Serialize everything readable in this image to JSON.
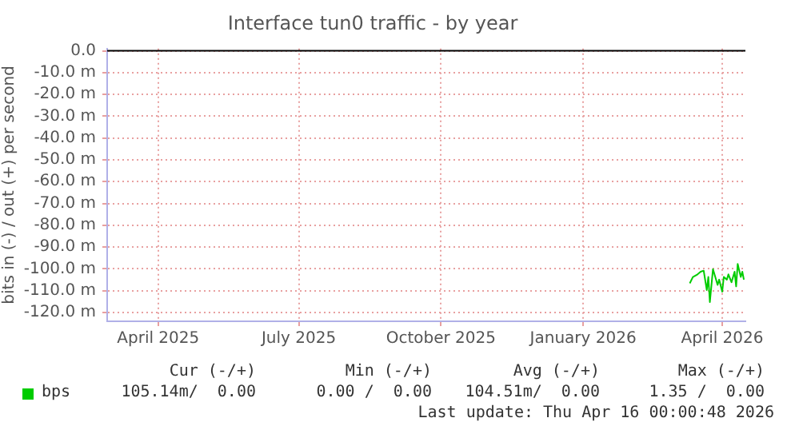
{
  "chart_data": {
    "type": "line",
    "title": "Interface tun0 traffic - by year",
    "ylabel": "bits in (-) / out (+) per second",
    "x": [
      "2026-03-11",
      "2026-03-13",
      "2026-03-16",
      "2026-03-18",
      "2026-03-20",
      "2026-03-22",
      "2026-03-23",
      "2026-03-24",
      "2026-03-26",
      "2026-03-27",
      "2026-03-29",
      "2026-03-30",
      "2026-04-01",
      "2026-04-02",
      "2026-04-04",
      "2026-04-05",
      "2026-04-07",
      "2026-04-09",
      "2026-04-10",
      "2026-04-11",
      "2026-04-13",
      "2026-04-14",
      "2026-04-15"
    ],
    "series": [
      {
        "name": "bps",
        "color": "#00cc00",
        "values": [
          -106.6,
          -103.7,
          -102.5,
          -101.3,
          -100.8,
          -109.7,
          -103.7,
          -115.2,
          -100.1,
          -102.5,
          -107.3,
          -104.9,
          -110.4,
          -103.7,
          -104.9,
          -102.5,
          -106.1,
          -101.3,
          -108,
          -97.7,
          -103.7,
          -101.3,
          -104.9
        ]
      }
    ],
    "xlim": [
      "2025-02-27",
      "2026-04-16"
    ],
    "xticks": [
      {
        "value": "2025-04-01",
        "label": "April 2025"
      },
      {
        "value": "2025-07-01",
        "label": "July 2025"
      },
      {
        "value": "2025-10-01",
        "label": "October 2025"
      },
      {
        "value": "2026-01-01",
        "label": "January 2026"
      },
      {
        "value": "2026-04-01",
        "label": "April 2026"
      }
    ],
    "ylim": [
      -124,
      1
    ],
    "yticks": [
      {
        "value": 0,
        "label": "0.0"
      },
      {
        "value": -10,
        "label": "-10.0 m"
      },
      {
        "value": -20,
        "label": "-20.0 m"
      },
      {
        "value": -30,
        "label": "-30.0 m"
      },
      {
        "value": -40,
        "label": "-40.0 m"
      },
      {
        "value": -50,
        "label": "-50.0 m"
      },
      {
        "value": -60,
        "label": "-60.0 m"
      },
      {
        "value": -70,
        "label": "-70.0 m"
      },
      {
        "value": -80,
        "label": "-80.0 m"
      },
      {
        "value": -90,
        "label": "-90.0 m"
      },
      {
        "value": -100,
        "label": "-100.0 m"
      },
      {
        "value": -110,
        "label": "-110.0 m"
      },
      {
        "value": -120,
        "label": "-120.0 m"
      }
    ],
    "ref_lines": [
      {
        "axis": "y",
        "value": 0,
        "color": "#000000"
      }
    ],
    "grid": true,
    "legend": "bottom",
    "annotations": [
      "Cur (-/+)",
      "Min (-/+)",
      "Avg (-/+)",
      "Max (-/+)",
      "105.14m/  0.00",
      "0.00 /  0.00",
      "104.51m/  0.00",
      "1.35 /  0.00",
      "Last update: Thu Apr 16 00:00:48 2026"
    ]
  }
}
